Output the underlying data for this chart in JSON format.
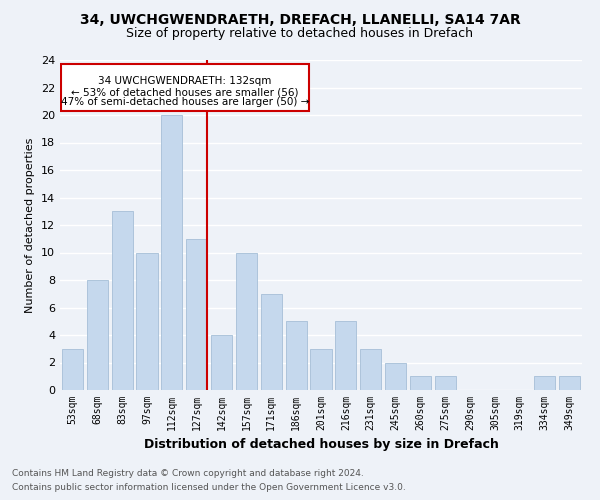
{
  "title_line1": "34, UWCHGWENDRAETH, DREFACH, LLANELLI, SA14 7AR",
  "title_line2": "Size of property relative to detached houses in Drefach",
  "xlabel": "Distribution of detached houses by size in Drefach",
  "ylabel": "Number of detached properties",
  "categories": [
    "53sqm",
    "68sqm",
    "83sqm",
    "97sqm",
    "112sqm",
    "127sqm",
    "142sqm",
    "157sqm",
    "171sqm",
    "186sqm",
    "201sqm",
    "216sqm",
    "231sqm",
    "245sqm",
    "260sqm",
    "275sqm",
    "290sqm",
    "305sqm",
    "319sqm",
    "334sqm",
    "349sqm"
  ],
  "values": [
    3,
    8,
    13,
    10,
    20,
    11,
    4,
    10,
    7,
    5,
    3,
    5,
    3,
    2,
    1,
    1,
    0,
    0,
    0,
    1,
    1
  ],
  "bar_color": "#c5d8ed",
  "bar_edge_color": "#adc4db",
  "ref_line_color": "#cc0000",
  "annotation_title": "34 UWCHGWENDRAETH: 132sqm",
  "annotation_line2": "← 53% of detached houses are smaller (56)",
  "annotation_line3": "47% of semi-detached houses are larger (50) →",
  "annotation_box_color": "#cc0000",
  "ylim": [
    0,
    24
  ],
  "yticks": [
    0,
    2,
    4,
    6,
    8,
    10,
    12,
    14,
    16,
    18,
    20,
    22,
    24
  ],
  "footnote1": "Contains HM Land Registry data © Crown copyright and database right 2024.",
  "footnote2": "Contains public sector information licensed under the Open Government Licence v3.0.",
  "bg_color": "#eef2f8",
  "grid_color": "#ffffff",
  "title_fontsize": 10,
  "subtitle_fontsize": 9,
  "ylabel_fontsize": 8,
  "xlabel_fontsize": 9,
  "tick_fontsize": 7,
  "ytick_fontsize": 8,
  "annot_fontsize": 7.5,
  "footnote_fontsize": 6.5
}
